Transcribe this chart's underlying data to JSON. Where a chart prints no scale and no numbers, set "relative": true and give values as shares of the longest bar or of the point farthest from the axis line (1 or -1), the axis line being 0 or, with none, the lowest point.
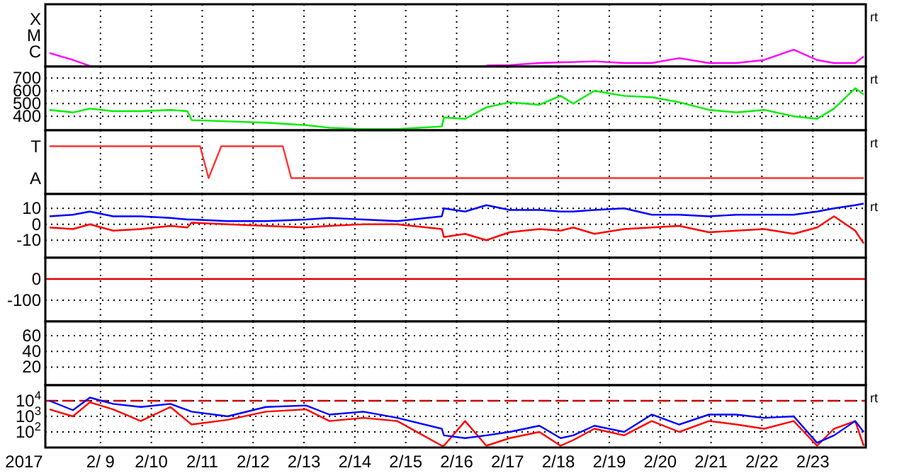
{
  "chart_data": [
    {
      "type": "line",
      "relative": true,
      "grid": "x",
      "tick_labels": false,
      "annotations": [
        "X",
        "M",
        "C",
        "rt"
      ],
      "xlim": [
        "2017-02-07T22:00",
        "2017-02-24T01:00"
      ],
      "xticks": [
        {
          "value": "2017-02-09",
          "label": null
        },
        {
          "value": "2017-02-10",
          "label": null
        },
        {
          "value": "2017-02-11",
          "label": null
        },
        {
          "value": "2017-02-12",
          "label": null
        },
        {
          "value": "2017-02-13",
          "label": null
        },
        {
          "value": "2017-02-14",
          "label": null
        },
        {
          "value": "2017-02-15",
          "label": null
        },
        {
          "value": "2017-02-16",
          "label": null
        },
        {
          "value": "2017-02-17",
          "label": null
        },
        {
          "value": "2017-02-18",
          "label": null
        },
        {
          "value": "2017-02-19",
          "label": null
        },
        {
          "value": "2017-02-20",
          "label": null
        },
        {
          "value": "2017-02-21",
          "label": null
        },
        {
          "value": "2017-02-22",
          "label": null
        },
        {
          "value": "2017-02-23",
          "label": null
        }
      ],
      "x": [
        "2017-02-08T00:00",
        "2017-02-08T11:00",
        "2017-02-08T19:00",
        "2017-02-09T06:00",
        "2017-02-09T19:00",
        "2017-02-10T09:00",
        "2017-02-10T17:00",
        "2017-02-10T19:00",
        "2017-02-11T12:00",
        "2017-02-12T06:00",
        "2017-02-13T01:00",
        "2017-02-13T12:00",
        "2017-02-14T04:00",
        "2017-02-14T20:00",
        "2017-02-15T17:00",
        "2017-02-15T18:00",
        "2017-02-16T04:00",
        "2017-02-16T14:00",
        "2017-02-17T01:00",
        "2017-02-17T15:00",
        "2017-02-18T01:00",
        "2017-02-18T07:00",
        "2017-02-18T17:00",
        "2017-02-19T07:00",
        "2017-02-19T20:00",
        "2017-02-20T09:00",
        "2017-02-20T23:00",
        "2017-02-21T12:00",
        "2017-02-22T01:00",
        "2017-02-22T15:00",
        "2017-02-23T02:00",
        "2017-02-23T10:00",
        "2017-02-23T20:00",
        "2017-02-24T00:00"
      ],
      "series": [
        {
          "color": "#ff00ff",
          "values": [
            0.8,
            0.39,
            0.04,
            null,
            null,
            null,
            null,
            null,
            null,
            null,
            null,
            null,
            null,
            null,
            null,
            null,
            null,
            null,
            null,
            null,
            null,
            null,
            null,
            null,
            null,
            null,
            null,
            null,
            null,
            null,
            null,
            null,
            null,
            null
          ]
        },
        {
          "color": "#ff00ff",
          "values": [
            null,
            null,
            null,
            null,
            null,
            null,
            null,
            null,
            null,
            null,
            null,
            null,
            null,
            null,
            null,
            null,
            null,
            0.06,
            0.09,
            0.21,
            0.25,
            0.27,
            0.31,
            0.21,
            0.21,
            0.5,
            0.21,
            0.21,
            0.39,
            1,
            0.39,
            0.21,
            0.21,
            0.6
          ]
        }
      ]
    },
    {
      "type": "line",
      "grid": true,
      "tick_labels": "y",
      "annotations": [
        "rt"
      ],
      "xlim": [
        "2017-02-07T22:00",
        "2017-02-24T01:00"
      ],
      "xticks": [
        {
          "value": "2017-02-09",
          "label": null
        },
        {
          "value": "2017-02-10",
          "label": null
        },
        {
          "value": "2017-02-11",
          "label": null
        },
        {
          "value": "2017-02-12",
          "label": null
        },
        {
          "value": "2017-02-13",
          "label": null
        },
        {
          "value": "2017-02-14",
          "label": null
        },
        {
          "value": "2017-02-15",
          "label": null
        },
        {
          "value": "2017-02-16",
          "label": null
        },
        {
          "value": "2017-02-17",
          "label": null
        },
        {
          "value": "2017-02-18",
          "label": null
        },
        {
          "value": "2017-02-19",
          "label": null
        },
        {
          "value": "2017-02-20",
          "label": null
        },
        {
          "value": "2017-02-21",
          "label": null
        },
        {
          "value": "2017-02-22",
          "label": null
        },
        {
          "value": "2017-02-23",
          "label": null
        }
      ],
      "ylim": [
        290,
        790
      ],
      "yticks": [
        400,
        500,
        600,
        700
      ],
      "x": [
        "2017-02-08T00:00",
        "2017-02-08T11:00",
        "2017-02-08T19:00",
        "2017-02-09T06:00",
        "2017-02-09T19:00",
        "2017-02-10T09:00",
        "2017-02-10T17:00",
        "2017-02-10T19:00",
        "2017-02-11T12:00",
        "2017-02-12T06:00",
        "2017-02-13T01:00",
        "2017-02-13T12:00",
        "2017-02-14T04:00",
        "2017-02-14T20:00",
        "2017-02-15T17:00",
        "2017-02-15T18:00",
        "2017-02-16T04:00",
        "2017-02-16T14:00",
        "2017-02-17T01:00",
        "2017-02-17T15:00",
        "2017-02-18T01:00",
        "2017-02-18T07:00",
        "2017-02-18T17:00",
        "2017-02-19T07:00",
        "2017-02-19T20:00",
        "2017-02-20T09:00",
        "2017-02-20T23:00",
        "2017-02-21T12:00",
        "2017-02-22T01:00",
        "2017-02-22T15:00",
        "2017-02-23T02:00",
        "2017-02-23T10:00",
        "2017-02-23T20:00",
        "2017-02-24T00:00"
      ],
      "series": [
        {
          "color": "#00ee00",
          "values": [
            450,
            430,
            460,
            440,
            440,
            450,
            440,
            370,
            360,
            350,
            330,
            310,
            300,
            300,
            320,
            390,
            380,
            470,
            510,
            490,
            560,
            500,
            600,
            560,
            550,
            510,
            450,
            430,
            450,
            400,
            380,
            460,
            620,
            570
          ]
        }
      ]
    },
    {
      "type": "line",
      "relative": true,
      "grid": "x",
      "tick_labels": false,
      "annotations": [
        "T",
        "A",
        "rt"
      ],
      "xlim": [
        "2017-02-07T22:00",
        "2017-02-24T01:00"
      ],
      "xticks": [
        {
          "value": "2017-02-09",
          "label": null
        },
        {
          "value": "2017-02-10",
          "label": null
        },
        {
          "value": "2017-02-11",
          "label": null
        },
        {
          "value": "2017-02-12",
          "label": null
        },
        {
          "value": "2017-02-13",
          "label": null
        },
        {
          "value": "2017-02-14",
          "label": null
        },
        {
          "value": "2017-02-15",
          "label": null
        },
        {
          "value": "2017-02-16",
          "label": null
        },
        {
          "value": "2017-02-17",
          "label": null
        },
        {
          "value": "2017-02-18",
          "label": null
        },
        {
          "value": "2017-02-19",
          "label": null
        },
        {
          "value": "2017-02-20",
          "label": null
        },
        {
          "value": "2017-02-21",
          "label": null
        },
        {
          "value": "2017-02-22",
          "label": null
        },
        {
          "value": "2017-02-23",
          "label": null
        }
      ],
      "series": [
        {
          "color": "#ff3333",
          "x": [
            "2017-02-08T00:00",
            "2017-02-10T23:00",
            "2017-02-11T03:00",
            "2017-02-11T09:00",
            "2017-02-12T14:00",
            "2017-02-12T18:00",
            "2017-02-24T00:00"
          ],
          "values": [
            1,
            1,
            0,
            1,
            1,
            0,
            0
          ]
        }
      ]
    },
    {
      "type": "line",
      "grid": true,
      "tick_labels": "y",
      "annotations": [
        "rt"
      ],
      "xlim": [
        "2017-02-07T22:00",
        "2017-02-24T01:00"
      ],
      "xticks": [
        {
          "value": "2017-02-09",
          "label": null
        },
        {
          "value": "2017-02-10",
          "label": null
        },
        {
          "value": "2017-02-11",
          "label": null
        },
        {
          "value": "2017-02-12",
          "label": null
        },
        {
          "value": "2017-02-13",
          "label": null
        },
        {
          "value": "2017-02-14",
          "label": null
        },
        {
          "value": "2017-02-15",
          "label": null
        },
        {
          "value": "2017-02-16",
          "label": null
        },
        {
          "value": "2017-02-17",
          "label": null
        },
        {
          "value": "2017-02-18",
          "label": null
        },
        {
          "value": "2017-02-19",
          "label": null
        },
        {
          "value": "2017-02-20",
          "label": null
        },
        {
          "value": "2017-02-21",
          "label": null
        },
        {
          "value": "2017-02-22",
          "label": null
        },
        {
          "value": "2017-02-23",
          "label": null
        }
      ],
      "ylim": [
        -21,
        19
      ],
      "yticks": [
        -10,
        0,
        10
      ],
      "x": [
        "2017-02-08T00:00",
        "2017-02-08T11:00",
        "2017-02-08T19:00",
        "2017-02-09T06:00",
        "2017-02-09T19:00",
        "2017-02-10T09:00",
        "2017-02-10T17:00",
        "2017-02-10T19:00",
        "2017-02-11T12:00",
        "2017-02-12T06:00",
        "2017-02-13T01:00",
        "2017-02-13T12:00",
        "2017-02-14T04:00",
        "2017-02-14T20:00",
        "2017-02-15T17:00",
        "2017-02-15T18:00",
        "2017-02-16T04:00",
        "2017-02-16T14:00",
        "2017-02-17T01:00",
        "2017-02-17T15:00",
        "2017-02-18T01:00",
        "2017-02-18T07:00",
        "2017-02-18T17:00",
        "2017-02-19T07:00",
        "2017-02-19T20:00",
        "2017-02-20T09:00",
        "2017-02-20T23:00",
        "2017-02-21T12:00",
        "2017-02-22T01:00",
        "2017-02-22T15:00",
        "2017-02-23T02:00",
        "2017-02-23T10:00",
        "2017-02-23T20:00",
        "2017-02-24T00:00"
      ],
      "series": [
        {
          "color": "#0000ff",
          "values": [
            5,
            6,
            8,
            5,
            5,
            4,
            3,
            3,
            2,
            2,
            3,
            4,
            3,
            2,
            5,
            10,
            8,
            12,
            9,
            9,
            8,
            8,
            9,
            10,
            6,
            6,
            5,
            6,
            6,
            6,
            8,
            10,
            12,
            13
          ]
        },
        {
          "color": "#ff0000",
          "values": [
            -2,
            -3,
            0,
            -4,
            -3,
            -1,
            -2,
            1,
            0,
            -1,
            -2,
            -1,
            0,
            0,
            -3,
            -8,
            -6,
            -10,
            -5,
            -3,
            -4,
            -2,
            -6,
            -3,
            -2,
            -1,
            -5,
            -4,
            -3,
            -6,
            -2,
            5,
            -4,
            -12
          ]
        }
      ]
    },
    {
      "type": "line",
      "grid": true,
      "tick_labels": "y",
      "xlim": [
        "2017-02-07T22:00",
        "2017-02-24T01:00"
      ],
      "xticks": [
        {
          "value": "2017-02-09",
          "label": null
        },
        {
          "value": "2017-02-10",
          "label": null
        },
        {
          "value": "2017-02-11",
          "label": null
        },
        {
          "value": "2017-02-12",
          "label": null
        },
        {
          "value": "2017-02-13",
          "label": null
        },
        {
          "value": "2017-02-14",
          "label": null
        },
        {
          "value": "2017-02-15",
          "label": null
        },
        {
          "value": "2017-02-16",
          "label": null
        },
        {
          "value": "2017-02-17",
          "label": null
        },
        {
          "value": "2017-02-18",
          "label": null
        },
        {
          "value": "2017-02-19",
          "label": null
        },
        {
          "value": "2017-02-20",
          "label": null
        },
        {
          "value": "2017-02-21",
          "label": null
        },
        {
          "value": "2017-02-22",
          "label": null
        },
        {
          "value": "2017-02-23",
          "label": null
        }
      ],
      "ylim": [
        -200,
        100
      ],
      "yticks": [
        -100,
        0
      ],
      "series": [
        {
          "color": "#dd0000",
          "x": [
            "2017-02-07T22:00",
            "2017-02-24T01:00"
          ],
          "values": [
            0,
            0
          ]
        }
      ]
    },
    {
      "type": "line",
      "grid": true,
      "tick_labels": "y",
      "xlim": [
        "2017-02-07T22:00",
        "2017-02-24T01:00"
      ],
      "xticks": [
        {
          "value": "2017-02-09",
          "label": null
        },
        {
          "value": "2017-02-10",
          "label": null
        },
        {
          "value": "2017-02-11",
          "label": null
        },
        {
          "value": "2017-02-12",
          "label": null
        },
        {
          "value": "2017-02-13",
          "label": null
        },
        {
          "value": "2017-02-14",
          "label": null
        },
        {
          "value": "2017-02-15",
          "label": null
        },
        {
          "value": "2017-02-16",
          "label": null
        },
        {
          "value": "2017-02-17",
          "label": null
        },
        {
          "value": "2017-02-18",
          "label": null
        },
        {
          "value": "2017-02-19",
          "label": null
        },
        {
          "value": "2017-02-20",
          "label": null
        },
        {
          "value": "2017-02-21",
          "label": null
        },
        {
          "value": "2017-02-22",
          "label": null
        },
        {
          "value": "2017-02-23",
          "label": null
        }
      ],
      "ylim": [
        -3,
        78
      ],
      "yticks": [
        20,
        40,
        60
      ]
    },
    {
      "type": "line",
      "log": "y",
      "grid": true,
      "xlabel": "2017",
      "annotations": [
        "rt"
      ],
      "xlim": [
        "2017-02-07T22:00",
        "2017-02-24T01:00"
      ],
      "xticks": [
        {
          "value": "2017-02-09",
          "label": "2/ 9"
        },
        {
          "value": "2017-02-10",
          "label": "2/10"
        },
        {
          "value": "2017-02-11",
          "label": "2/11"
        },
        {
          "value": "2017-02-12",
          "label": "2/12"
        },
        {
          "value": "2017-02-13",
          "label": "2/13"
        },
        {
          "value": "2017-02-14",
          "label": "2/14"
        },
        {
          "value": "2017-02-15",
          "label": "2/15"
        },
        {
          "value": "2017-02-16",
          "label": "2/16"
        },
        {
          "value": "2017-02-17",
          "label": "2/17"
        },
        {
          "value": "2017-02-18",
          "label": "2/18"
        },
        {
          "value": "2017-02-19",
          "label": "2/19"
        },
        {
          "value": "2017-02-20",
          "label": "2/20"
        },
        {
          "value": "2017-02-21",
          "label": "2/21"
        },
        {
          "value": "2017-02-22",
          "label": "2/22"
        },
        {
          "value": "2017-02-23",
          "label": "2/23"
        }
      ],
      "ylim": [
        10,
        100000
      ],
      "yticks": [
        {
          "value": 100,
          "label": "10$^{2}$"
        },
        {
          "value": 1000,
          "label": "10$^{3}$"
        },
        {
          "value": 10000,
          "label": "10$^{4}$"
        }
      ],
      "ref_lines": [
        {
          "axis": "y",
          "value": 10000,
          "color": "#cc0000",
          "line_style": "dashed"
        }
      ],
      "x": [
        "2017-02-08T00:00",
        "2017-02-08T11:00",
        "2017-02-08T19:00",
        "2017-02-09T06:00",
        "2017-02-09T19:00",
        "2017-02-10T09:00",
        "2017-02-10T17:00",
        "2017-02-10T19:00",
        "2017-02-11T12:00",
        "2017-02-12T06:00",
        "2017-02-13T01:00",
        "2017-02-13T12:00",
        "2017-02-14T04:00",
        "2017-02-14T20:00",
        "2017-02-15T17:00",
        "2017-02-15T18:00",
        "2017-02-16T04:00",
        "2017-02-16T14:00",
        "2017-02-17T01:00",
        "2017-02-17T15:00",
        "2017-02-18T01:00",
        "2017-02-18T07:00",
        "2017-02-18T17:00",
        "2017-02-19T07:00",
        "2017-02-19T20:00",
        "2017-02-20T09:00",
        "2017-02-20T23:00",
        "2017-02-21T12:00",
        "2017-02-22T01:00",
        "2017-02-22T15:00",
        "2017-02-23T02:00",
        "2017-02-23T10:00",
        "2017-02-23T20:00",
        "2017-02-24T00:00"
      ],
      "series": [
        {
          "color": "#ff0000",
          "values": [
            2800,
            1000,
            8000,
            2800,
            500,
            4000,
            500,
            300,
            600,
            2000,
            2800,
            500,
            800,
            500,
            13,
            13,
            500,
            13,
            40,
            100,
            13,
            30,
            160,
            60,
            500,
            100,
            500,
            300,
            160,
            500,
            13,
            160,
            500,
            13
          ]
        },
        {
          "color": "#0000ff",
          "values": [
            10000,
            2500,
            16000,
            6300,
            4000,
            6300,
            2500,
            2000,
            1000,
            4000,
            5000,
            1300,
            2000,
            800,
            160,
            60,
            40,
            60,
            100,
            250,
            40,
            60,
            250,
            100,
            1300,
            300,
            1300,
            1300,
            800,
            1000,
            20,
            60,
            500,
            100
          ]
        }
      ]
    }
  ]
}
